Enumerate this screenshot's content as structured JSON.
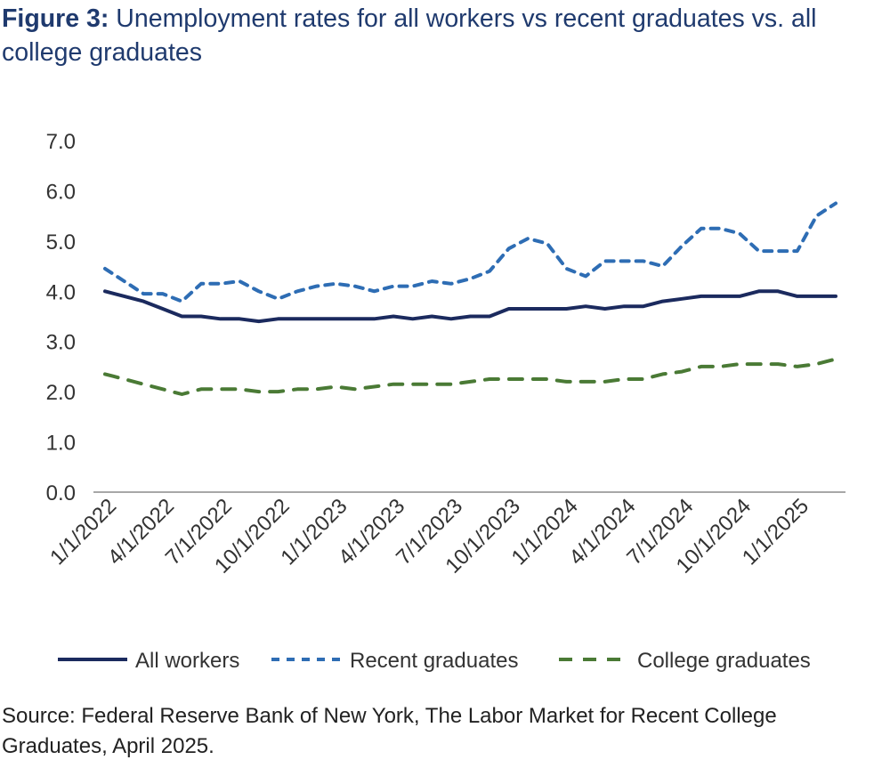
{
  "chart_data": {
    "type": "line",
    "title_prefix": "Figure 3:",
    "title": "Unemployment rates for all workers vs recent graduates vs. all college graduates",
    "xlabel": "",
    "ylabel": "",
    "ylim": [
      0,
      7
    ],
    "y_ticks": [
      "0.0",
      "1.0",
      "2.0",
      "3.0",
      "4.0",
      "5.0",
      "6.0",
      "7.0"
    ],
    "x_tick_labels": [
      "1/1/2022",
      "4/1/2022",
      "7/1/2022",
      "10/1/2022",
      "1/1/2023",
      "4/1/2023",
      "7/1/2023",
      "10/1/2023",
      "1/1/2024",
      "4/1/2024",
      "7/1/2024",
      "10/1/2024",
      "1/1/2025"
    ],
    "x_frequency": "monthly, Jan 2022 - Mar 2025",
    "grid": false,
    "legend_position": "bottom",
    "series": [
      {
        "name": "All workers",
        "color": "#1b2a5e",
        "style": "solid",
        "values": [
          4.0,
          3.9,
          3.8,
          3.65,
          3.5,
          3.5,
          3.45,
          3.45,
          3.4,
          3.45,
          3.45,
          3.45,
          3.45,
          3.45,
          3.45,
          3.5,
          3.45,
          3.5,
          3.45,
          3.5,
          3.5,
          3.65,
          3.65,
          3.65,
          3.65,
          3.7,
          3.65,
          3.7,
          3.7,
          3.8,
          3.85,
          3.9,
          3.9,
          3.9,
          4.0,
          4.0,
          3.9,
          3.9,
          3.9
        ]
      },
      {
        "name": "Recent graduates",
        "color": "#2e6db4",
        "style": "dashed",
        "values": [
          4.45,
          4.2,
          3.95,
          3.95,
          3.8,
          4.15,
          4.15,
          4.2,
          4.0,
          3.85,
          4.0,
          4.1,
          4.15,
          4.1,
          4.0,
          4.1,
          4.1,
          4.2,
          4.15,
          4.25,
          4.4,
          4.85,
          5.05,
          4.95,
          4.45,
          4.3,
          4.6,
          4.6,
          4.6,
          4.5,
          4.9,
          5.25,
          5.25,
          5.15,
          4.8,
          4.8,
          4.8,
          5.5,
          5.75
        ]
      },
      {
        "name": "College graduates",
        "color": "#4a7a35",
        "style": "dashed",
        "values": [
          2.35,
          2.25,
          2.15,
          2.05,
          1.95,
          2.05,
          2.05,
          2.05,
          2.0,
          2.0,
          2.05,
          2.05,
          2.1,
          2.05,
          2.1,
          2.15,
          2.15,
          2.15,
          2.15,
          2.2,
          2.25,
          2.25,
          2.25,
          2.25,
          2.2,
          2.2,
          2.2,
          2.25,
          2.25,
          2.35,
          2.4,
          2.5,
          2.5,
          2.55,
          2.55,
          2.55,
          2.5,
          2.55,
          2.65
        ]
      }
    ]
  },
  "source": "Source: Federal Reserve Bank of New York, The Labor Market for Recent College Graduates, April 2025."
}
